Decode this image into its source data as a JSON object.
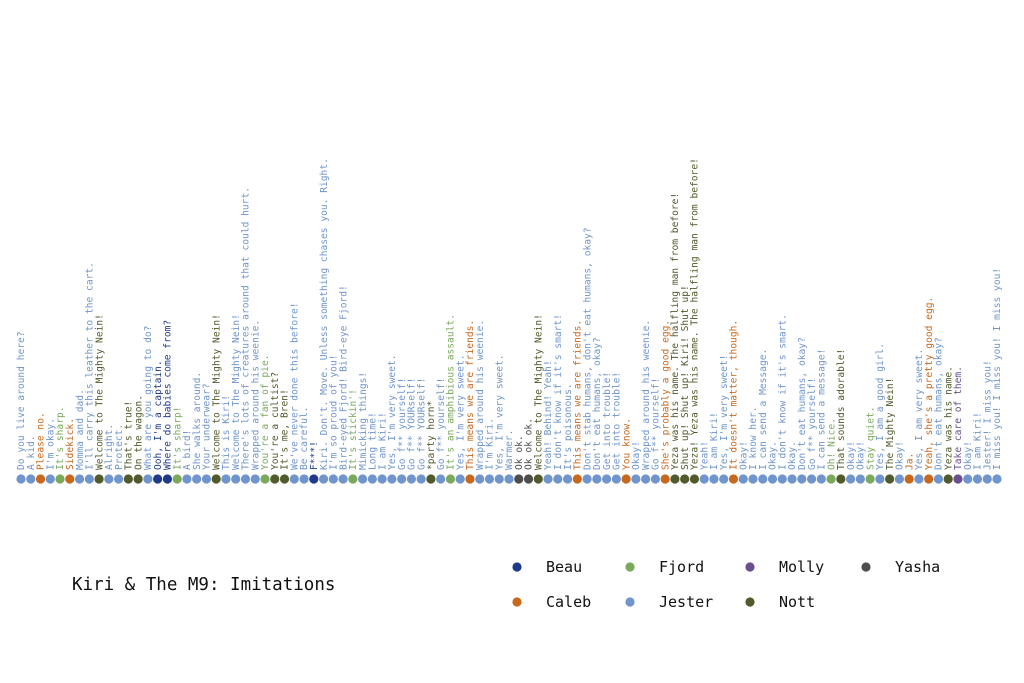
{
  "chart_data": {
    "type": "scatter",
    "title": "Kiri & The M9: Imitations",
    "colors": {
      "Beau": "#1f3a8a",
      "Caleb": "#c8681c",
      "Fjord": "#7aa95c",
      "Jester": "#6f95cc",
      "Molly": "#6a4f8f",
      "Nott": "#505a2a",
      "Yasha": "#4d4d4d"
    },
    "legend": [
      {
        "name": "Beau",
        "key": "Beau"
      },
      {
        "name": "Fjord",
        "key": "Fjord"
      },
      {
        "name": "Molly",
        "key": "Molly"
      },
      {
        "name": "Yasha",
        "key": "Yasha"
      },
      {
        "name": "Caleb",
        "key": "Caleb"
      },
      {
        "name": "Jester",
        "key": "Jester"
      },
      {
        "name": "Nott",
        "key": "Nott"
      }
    ],
    "points": [
      {
        "text": "Do you live around here?",
        "speaker": "Jester"
      },
      {
        "text": "A kid.",
        "speaker": "Jester"
      },
      {
        "text": "Please no.",
        "speaker": "Caleb"
      },
      {
        "text": "I'm okay.",
        "speaker": "Jester"
      },
      {
        "text": "It's sharp.",
        "speaker": "Fjord"
      },
      {
        "text": "Sidekick.",
        "speaker": "Caleb"
      },
      {
        "text": "Momma and dad.",
        "speaker": "Jester"
      },
      {
        "text": "I'll carry this leather to the cart.",
        "speaker": "Jester"
      },
      {
        "text": "Welcome to The Mighty Nein!",
        "speaker": "Nott"
      },
      {
        "text": "Alright.",
        "speaker": "Jester"
      },
      {
        "text": "Protect.",
        "speaker": "Jester"
      },
      {
        "text": "That's true!",
        "speaker": "Nott"
      },
      {
        "text": "On the wagon.",
        "speaker": "Nott"
      },
      {
        "text": "What are you going to do?",
        "speaker": "Jester"
      },
      {
        "text": "Ooh, I'm a captain.",
        "speaker": "Beau"
      },
      {
        "text": "Where do babies come from?",
        "speaker": "Beau"
      },
      {
        "text": "It's sharp!",
        "speaker": "Fjord"
      },
      {
        "text": "A bird!",
        "speaker": "Jester"
      },
      {
        "text": "She walks around.",
        "speaker": "Jester"
      },
      {
        "text": "Your underwear?",
        "speaker": "Jester"
      },
      {
        "text": "Welcome to The Mighty Nein!",
        "speaker": "Nott"
      },
      {
        "text": "This is Kiri!",
        "speaker": "Jester"
      },
      {
        "text": "Welcome to The Mighty Nein!",
        "speaker": "Jester"
      },
      {
        "text": "There's lots of creatures around that could hurt.",
        "speaker": "Jester"
      },
      {
        "text": "Wrapped around his weenie.",
        "speaker": "Jester"
      },
      {
        "text": "You're a fan of pie.",
        "speaker": "Fjord"
      },
      {
        "text": "You're a cultist?",
        "speaker": "Nott"
      },
      {
        "text": "It's me, Bren!",
        "speaker": "Nott"
      },
      {
        "text": "We've never done this before!",
        "speaker": "Jester"
      },
      {
        "text": "Be careful.",
        "speaker": "Jester"
      },
      {
        "text": "F***!",
        "speaker": "Beau"
      },
      {
        "text": "Kiri. Don't. Move. Unless something chases you. Right.",
        "speaker": "Jester"
      },
      {
        "text": "I'm so proud of you!",
        "speaker": "Jester"
      },
      {
        "text": "Bird-eyed Fjord! Bird-eye Fjord!",
        "speaker": "Jester"
      },
      {
        "text": "It's stickin'!",
        "speaker": "Fjord"
      },
      {
        "text": "Mimicking things!",
        "speaker": "Jester"
      },
      {
        "text": "Long time!",
        "speaker": "Jester"
      },
      {
        "text": "I am Kiri!",
        "speaker": "Jester"
      },
      {
        "text": "Yes, I'm very sweet.",
        "speaker": "Jester"
      },
      {
        "text": "Go f** yourself!",
        "speaker": "Jester"
      },
      {
        "text": "Go f** YOURself!",
        "speaker": "Jester"
      },
      {
        "text": "Go f** YOURself!",
        "speaker": "Jester"
      },
      {
        "text": "*party horn*",
        "speaker": "Nott"
      },
      {
        "text": "Go f** yourself!",
        "speaker": "Jester"
      },
      {
        "text": "It's an amphibious assault.",
        "speaker": "Fjord"
      },
      {
        "text": "Yes, I'm very sweet.",
        "speaker": "Jester"
      },
      {
        "text": "This means we are friends.",
        "speaker": "Caleb"
      },
      {
        "text": "Wrapped around his weenie.",
        "speaker": "Jester"
      },
      {
        "text": "I'm Kiri.",
        "speaker": "Jester"
      },
      {
        "text": "Yes, I'm very sweet.",
        "speaker": "Jester"
      },
      {
        "text": "Warmer.",
        "speaker": "Jester"
      },
      {
        "text": "Ok ok.",
        "speaker": "Yasha"
      },
      {
        "text": "Ok ok ok.",
        "speaker": "Yasha"
      },
      {
        "text": "Welcome to The Mighty Nein!",
        "speaker": "Nott"
      },
      {
        "text": "Yeah! Behind! Yeah!",
        "speaker": "Jester"
      },
      {
        "text": "I don't know if it's smart!",
        "speaker": "Jester"
      },
      {
        "text": "It's poisonous.",
        "speaker": "Jester"
      },
      {
        "text": "This means we are friends.",
        "speaker": "Caleb"
      },
      {
        "text": "Don't stab humans, don't eat humans, okay?",
        "speaker": "Jester"
      },
      {
        "text": "Don't eat humans, okay?",
        "speaker": "Jester"
      },
      {
        "text": "Get into trouble!",
        "speaker": "Jester"
      },
      {
        "text": "Get into trouble!",
        "speaker": "Jester"
      },
      {
        "text": "You know.",
        "speaker": "Caleb"
      },
      {
        "text": "Okay!",
        "speaker": "Jester"
      },
      {
        "text": "Wrapped around his weenie.",
        "speaker": "Jester"
      },
      {
        "text": "Go f** yourself!",
        "speaker": "Jester"
      },
      {
        "text": "She's probably a good egg.",
        "speaker": "Caleb"
      },
      {
        "text": "Yeza was his name. The halfling man from before!",
        "speaker": "Nott"
      },
      {
        "text": "Shut up! Shut up! Kiri! Shut up!",
        "speaker": "Nott"
      },
      {
        "text": "Yeza! Yeza was his name. The halfling man from before!",
        "speaker": "Nott"
      },
      {
        "text": "Yeah!",
        "speaker": "Jester"
      },
      {
        "text": "I am Kiri!",
        "speaker": "Jester"
      },
      {
        "text": "Yes, I'm very sweet!",
        "speaker": "Jester"
      },
      {
        "text": "It doesn't matter, though.",
        "speaker": "Caleb"
      },
      {
        "text": "Okay!",
        "speaker": "Jester"
      },
      {
        "text": "I know her.",
        "speaker": "Jester"
      },
      {
        "text": "I can send a Message.",
        "speaker": "Jester"
      },
      {
        "text": "Okay.",
        "speaker": "Jester"
      },
      {
        "text": "I don't know if it's smart.",
        "speaker": "Jester"
      },
      {
        "text": "Okay.",
        "speaker": "Jester"
      },
      {
        "text": "Don't eat humans, okay?",
        "speaker": "Jester"
      },
      {
        "text": "Go f** yourself!",
        "speaker": "Jester"
      },
      {
        "text": "I can send a message!",
        "speaker": "Jester"
      },
      {
        "text": "Oh! Nice.",
        "speaker": "Fjord"
      },
      {
        "text": "That sounds adorable!",
        "speaker": "Nott"
      },
      {
        "text": "Okay!",
        "speaker": "Jester"
      },
      {
        "text": "Okay!",
        "speaker": "Jester"
      },
      {
        "text": "Stay quiet.",
        "speaker": "Fjord"
      },
      {
        "text": "Yes, I am a good girl.",
        "speaker": "Jester"
      },
      {
        "text": "The Mighty Nein!",
        "speaker": "Nott"
      },
      {
        "text": "Okay!",
        "speaker": "Jester"
      },
      {
        "text": "Ja.",
        "speaker": "Caleb"
      },
      {
        "text": "Yes, I am very sweet.",
        "speaker": "Jester"
      },
      {
        "text": "Yeah, she's a pretty good egg.",
        "speaker": "Caleb"
      },
      {
        "text": "Don't eat humans, okay?",
        "speaker": "Jester"
      },
      {
        "text": "Yeza was his name.",
        "speaker": "Nott"
      },
      {
        "text": "Take care of them.",
        "speaker": "Molly"
      },
      {
        "text": "Okay!",
        "speaker": "Jester"
      },
      {
        "text": "I am Kiri!",
        "speaker": "Jester"
      },
      {
        "text": "Jester! I miss you!",
        "speaker": "Jester"
      },
      {
        "text": "I miss you! I miss you! I miss you!",
        "speaker": "Jester"
      }
    ]
  }
}
